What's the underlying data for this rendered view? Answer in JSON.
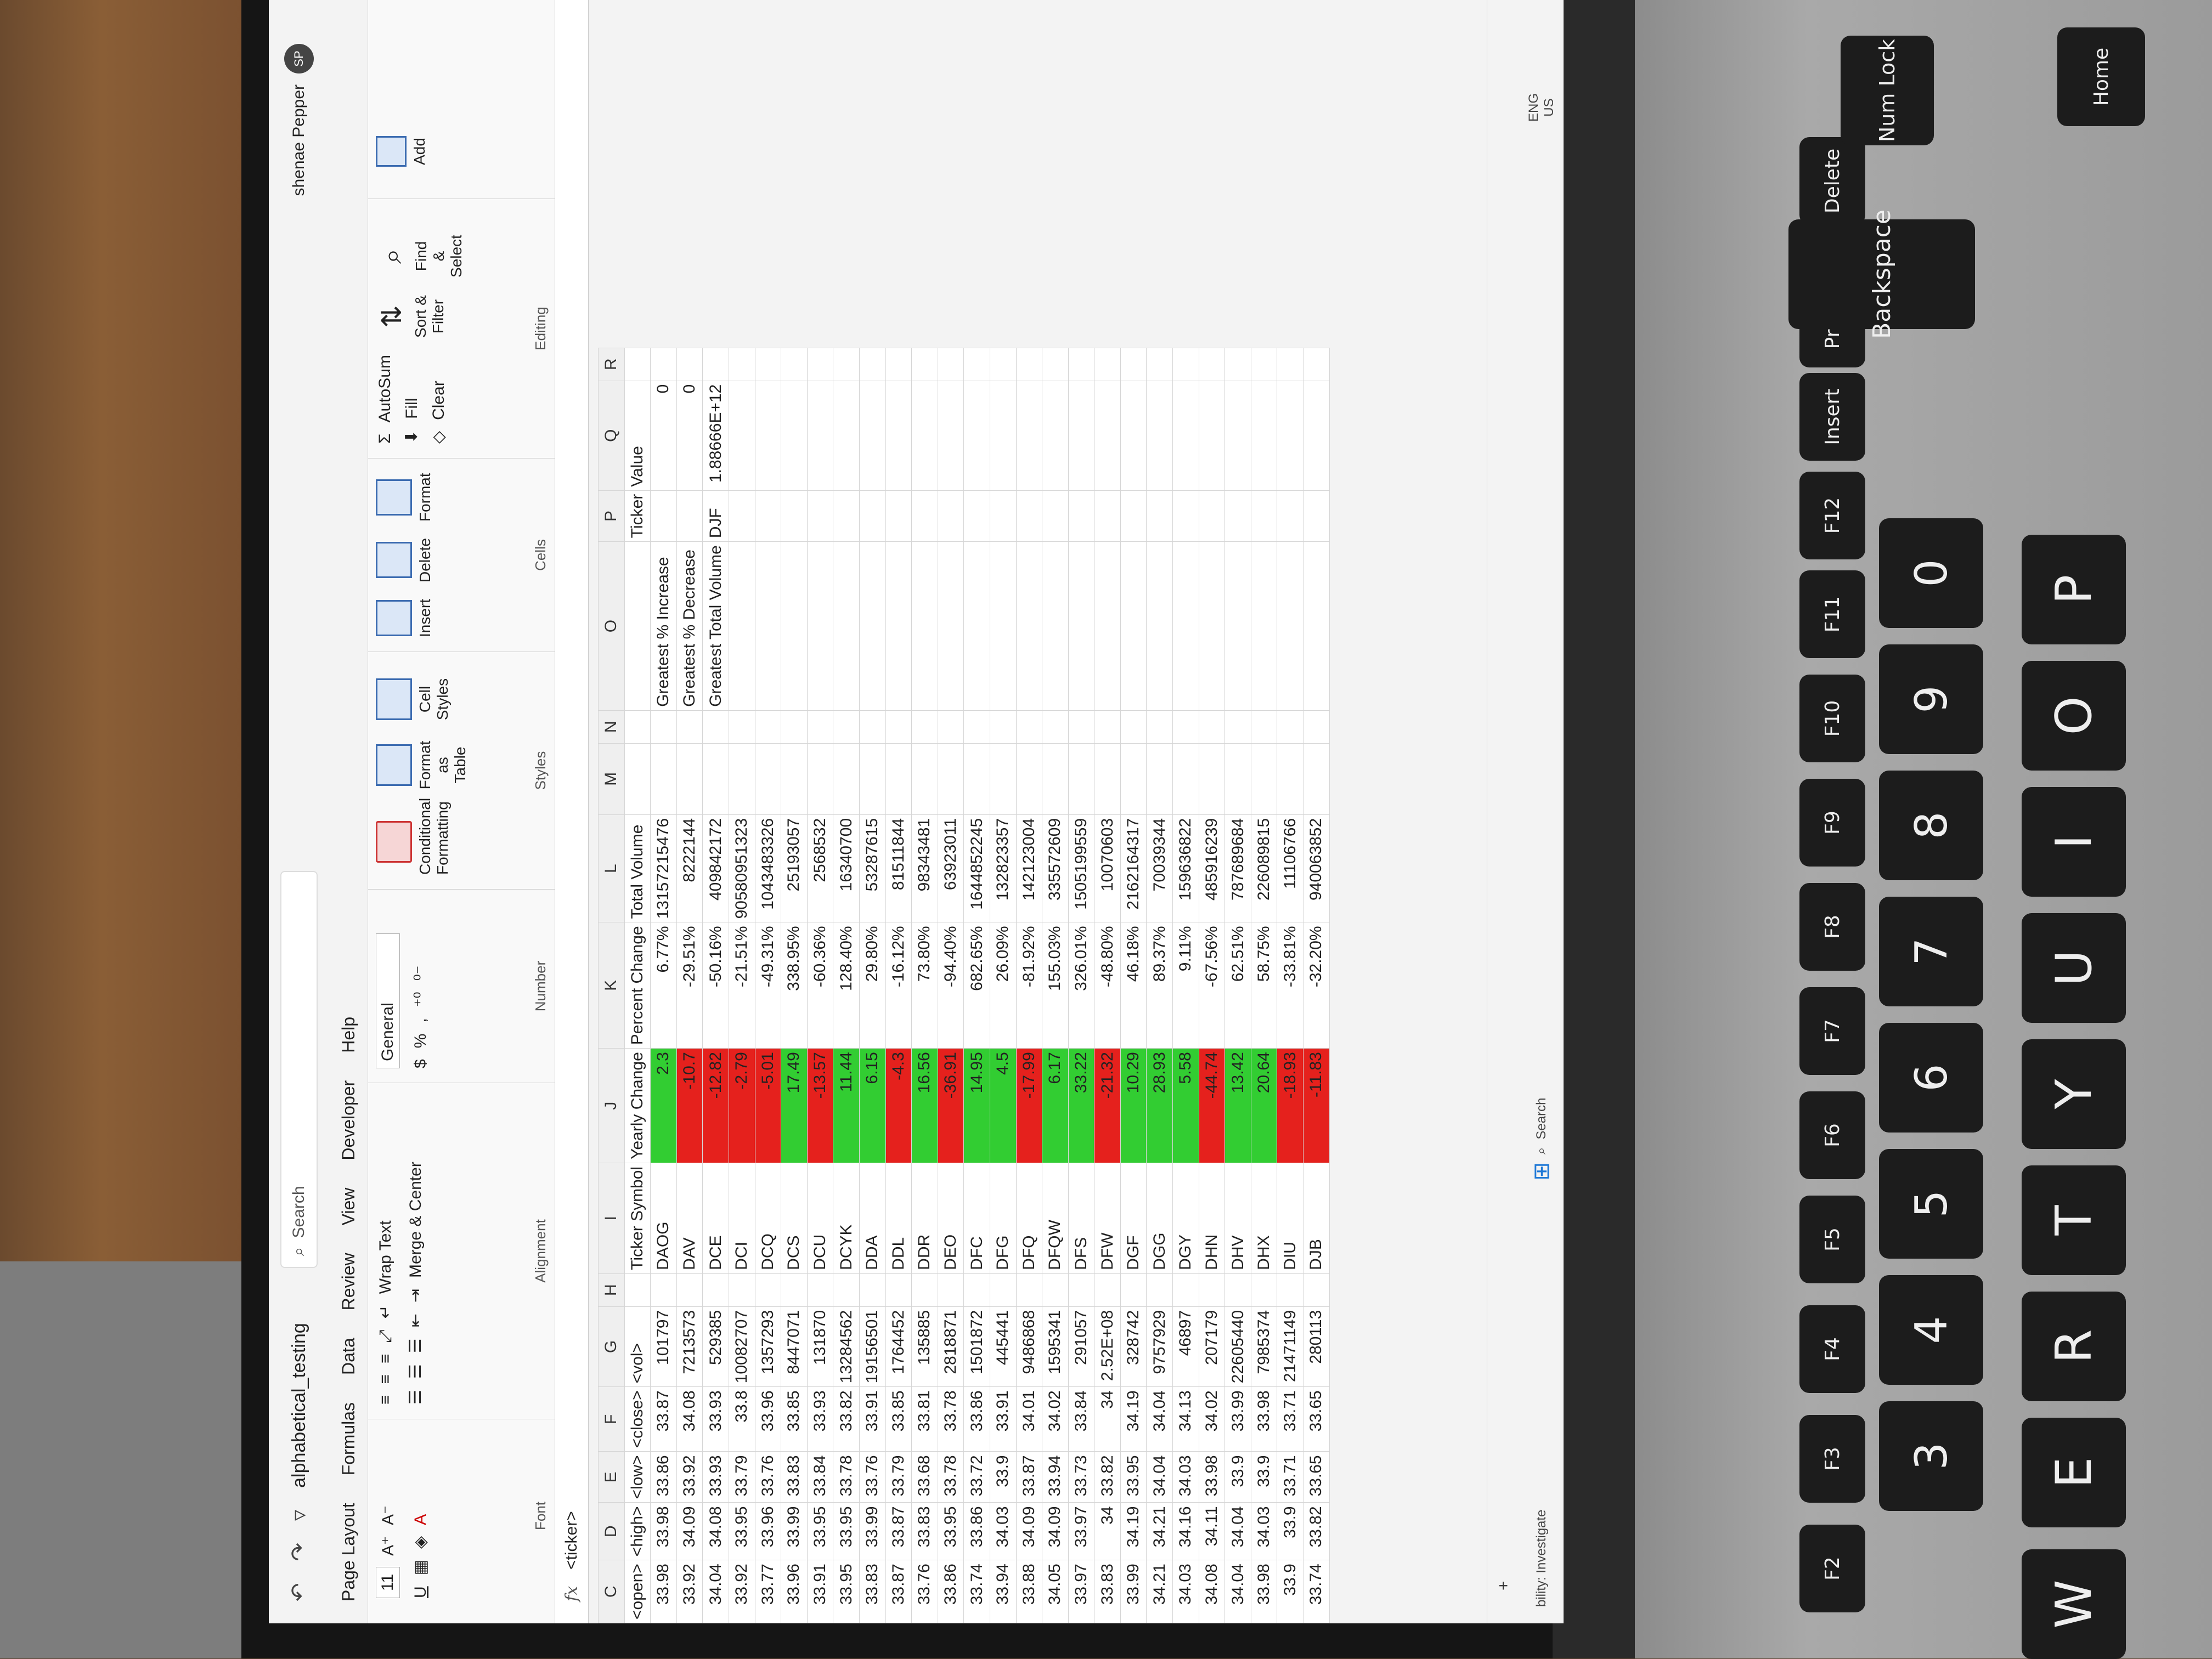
{
  "window": {
    "title": "alphabetical_testing",
    "search_placeholder": "Search",
    "user_name": "shenae Pepper",
    "user_initials": "SP"
  },
  "menu": [
    "Page Layout",
    "Formulas",
    "Data",
    "Review",
    "View",
    "Developer",
    "Help"
  ],
  "ribbon": {
    "font": {
      "size": "11",
      "label": "Font"
    },
    "alignment": {
      "wrap_text": "Wrap Text",
      "merge_center": "Merge & Center",
      "label": "Alignment"
    },
    "number": {
      "format": "General",
      "label": "Number"
    },
    "styles": {
      "conditional": "Conditional Formatting",
      "format_table": "Format as Table",
      "cell_styles": "Cell Styles",
      "label": "Styles"
    },
    "cells": {
      "insert": "Insert",
      "delete": "Delete",
      "format": "Format",
      "label": "Cells"
    },
    "editing": {
      "autosum": "AutoSum",
      "fill": "Fill",
      "clear": "Clear",
      "sort_filter": "Sort & Filter",
      "find_select": "Find & Select",
      "label": "Editing"
    },
    "add": "Add"
  },
  "formula_bar": {
    "content": "<ticker>",
    "fx": "fx"
  },
  "columns": [
    "C",
    "D",
    "E",
    "F",
    "G",
    "H",
    "I",
    "J",
    "K",
    "L",
    "M",
    "N",
    "O",
    "P",
    "Q",
    "R"
  ],
  "headers": {
    "open": "<open>",
    "high": "<high>",
    "low": "<low>",
    "close": "<close>",
    "vol": "<vol>",
    "ticker_symbol": "Ticker Symbol",
    "yearly_change": "Yearly Change",
    "percent_change": "Percent Change",
    "total_volume": "Total Volume",
    "ticker": "Ticker",
    "value": "Value"
  },
  "rows": [
    {
      "open": "33.98",
      "high": "33.98",
      "low": "33.86",
      "close": "33.87",
      "vol": "101797",
      "sym": "DAOG",
      "yc": "2.3",
      "pc": "6.77%",
      "tv": "13157215476",
      "up": true
    },
    {
      "open": "33.92",
      "high": "34.09",
      "low": "33.92",
      "close": "34.08",
      "vol": "7213573",
      "sym": "DAV",
      "yc": "-10.7",
      "pc": "-29.51%",
      "tv": "8222144",
      "up": false
    },
    {
      "open": "34.04",
      "high": "34.08",
      "low": "33.93",
      "close": "33.93",
      "vol": "529385",
      "sym": "DCE",
      "yc": "-12.82",
      "pc": "-50.16%",
      "tv": "409842172",
      "up": false
    },
    {
      "open": "33.92",
      "high": "33.95",
      "low": "33.79",
      "close": "33.8",
      "vol": "10082707",
      "sym": "DCI",
      "yc": "-2.79",
      "pc": "-21.51%",
      "tv": "90580951323",
      "up": false
    },
    {
      "open": "33.77",
      "high": "33.96",
      "low": "33.76",
      "close": "33.96",
      "vol": "1357293",
      "sym": "DCQ",
      "yc": "-5.01",
      "pc": "-49.31%",
      "tv": "1043483326",
      "up": false
    },
    {
      "open": "33.96",
      "high": "33.99",
      "low": "33.83",
      "close": "33.85",
      "vol": "8447071",
      "sym": "DCS",
      "yc": "17.49",
      "pc": "338.95%",
      "tv": "25193057",
      "up": true
    },
    {
      "open": "33.91",
      "high": "33.95",
      "low": "33.84",
      "close": "33.93",
      "vol": "131870",
      "sym": "DCU",
      "yc": "-13.57",
      "pc": "-60.36%",
      "tv": "2568532",
      "up": false
    },
    {
      "open": "33.95",
      "high": "33.95",
      "low": "33.78",
      "close": "33.82",
      "vol": "13284562",
      "sym": "DCYK",
      "yc": "11.44",
      "pc": "128.40%",
      "tv": "16340700",
      "up": true
    },
    {
      "open": "33.83",
      "high": "33.99",
      "low": "33.76",
      "close": "33.91",
      "vol": "19156501",
      "sym": "DDA",
      "yc": "6.15",
      "pc": "29.80%",
      "tv": "53287615",
      "up": true
    },
    {
      "open": "33.87",
      "high": "33.87",
      "low": "33.79",
      "close": "33.85",
      "vol": "1764452",
      "sym": "DDL",
      "yc": "-4.3",
      "pc": "-16.12%",
      "tv": "81511844",
      "up": false
    },
    {
      "open": "33.76",
      "high": "33.83",
      "low": "33.68",
      "close": "33.81",
      "vol": "135885",
      "sym": "DDR",
      "yc": "16.56",
      "pc": "73.80%",
      "tv": "98343481",
      "up": true
    },
    {
      "open": "33.86",
      "high": "33.95",
      "low": "33.78",
      "close": "33.78",
      "vol": "2818871",
      "sym": "DEO",
      "yc": "-36.91",
      "pc": "-94.40%",
      "tv": "63923011",
      "up": false
    },
    {
      "open": "33.74",
      "high": "33.86",
      "low": "33.72",
      "close": "33.86",
      "vol": "1501872",
      "sym": "DFC",
      "yc": "14.95",
      "pc": "682.65%",
      "tv": "1644852245",
      "up": true
    },
    {
      "open": "33.94",
      "high": "34.03",
      "low": "33.9",
      "close": "33.91",
      "vol": "445441",
      "sym": "DFG",
      "yc": "4.5",
      "pc": "26.09%",
      "tv": "132823357",
      "up": true
    },
    {
      "open": "33.88",
      "high": "34.09",
      "low": "33.87",
      "close": "34.01",
      "vol": "9486868",
      "sym": "DFQ",
      "yc": "-17.99",
      "pc": "-81.92%",
      "tv": "142123004",
      "up": false
    },
    {
      "open": "34.05",
      "high": "34.09",
      "low": "33.94",
      "close": "34.02",
      "vol": "1595341",
      "sym": "DFQW",
      "yc": "6.17",
      "pc": "155.03%",
      "tv": "335572609",
      "up": true
    },
    {
      "open": "33.97",
      "high": "33.97",
      "low": "33.73",
      "close": "33.84",
      "vol": "291057",
      "sym": "DFS",
      "yc": "33.22",
      "pc": "326.01%",
      "tv": "1505199559",
      "up": true
    },
    {
      "open": "33.83",
      "high": "34",
      "low": "33.82",
      "close": "34",
      "vol": "2.52E+08",
      "sym": "DFW",
      "yc": "-21.32",
      "pc": "-48.80%",
      "tv": "10070603",
      "up": false
    },
    {
      "open": "33.99",
      "high": "34.19",
      "low": "33.95",
      "close": "34.19",
      "vol": "328742",
      "sym": "DGF",
      "yc": "10.29",
      "pc": "46.18%",
      "tv": "2162164317",
      "up": true
    },
    {
      "open": "34.21",
      "high": "34.21",
      "low": "34.04",
      "close": "34.04",
      "vol": "9757929",
      "sym": "DGG",
      "yc": "28.93",
      "pc": "89.37%",
      "tv": "70039344",
      "up": true
    },
    {
      "open": "34.03",
      "high": "34.16",
      "low": "34.03",
      "close": "34.13",
      "vol": "46897",
      "sym": "DGY",
      "yc": "5.58",
      "pc": "9.11%",
      "tv": "159636822",
      "up": true
    },
    {
      "open": "34.08",
      "high": "34.11",
      "low": "33.98",
      "close": "34.02",
      "vol": "207179",
      "sym": "DHN",
      "yc": "-44.74",
      "pc": "-67.56%",
      "tv": "485916239",
      "up": false
    },
    {
      "open": "34.04",
      "high": "34.04",
      "low": "33.9",
      "close": "33.99",
      "vol": "22605440",
      "sym": "DHV",
      "yc": "13.42",
      "pc": "62.51%",
      "tv": "787689684",
      "up": true
    },
    {
      "open": "33.98",
      "high": "34.03",
      "low": "33.9",
      "close": "33.98",
      "vol": "7985374",
      "sym": "DHX",
      "yc": "20.64",
      "pc": "58.75%",
      "tv": "226089815",
      "up": true
    },
    {
      "open": "33.9",
      "high": "33.9",
      "low": "33.71",
      "close": "33.71",
      "vol": "21471149",
      "sym": "DIU",
      "yc": "-18.93",
      "pc": "-33.81%",
      "tv": "11106766",
      "up": false
    },
    {
      "open": "33.74",
      "high": "33.82",
      "low": "33.65",
      "close": "33.65",
      "vol": "280113",
      "sym": "DJB",
      "yc": "-11.83",
      "pc": "-32.20%",
      "tv": "940063852",
      "up": false
    }
  ],
  "summary": [
    {
      "label": "Greatest % Increase",
      "ticker": "",
      "value": "0"
    },
    {
      "label": "Greatest % Decrease",
      "ticker": "",
      "value": "0"
    },
    {
      "label": "Greatest Total Volume",
      "ticker": "DJF",
      "value": "1.88666E+12"
    }
  ],
  "status": {
    "accessibility": "bility: Investigate",
    "lang": "ENG",
    "region": "US",
    "taskbar_search": "Search"
  },
  "colors": {
    "positive": "#32cd32",
    "negative": "#e5211d"
  },
  "keyboard": {
    "fn_keys": [
      "F2",
      "F3",
      "F4",
      "F5",
      "F6",
      "F7",
      "F8",
      "F9",
      "F10",
      "F11",
      "F12",
      "Insert",
      "PrtSc",
      "Delete"
    ],
    "num_keys": [
      "3",
      "4",
      "5",
      "6",
      "7",
      "8",
      "9",
      "0"
    ],
    "letter_keys": [
      "W",
      "E",
      "R",
      "T",
      "Y",
      "U",
      "I",
      "O",
      "P"
    ],
    "backspace": "Backspace",
    "num_lock": "Num Lock",
    "home": "Home"
  }
}
